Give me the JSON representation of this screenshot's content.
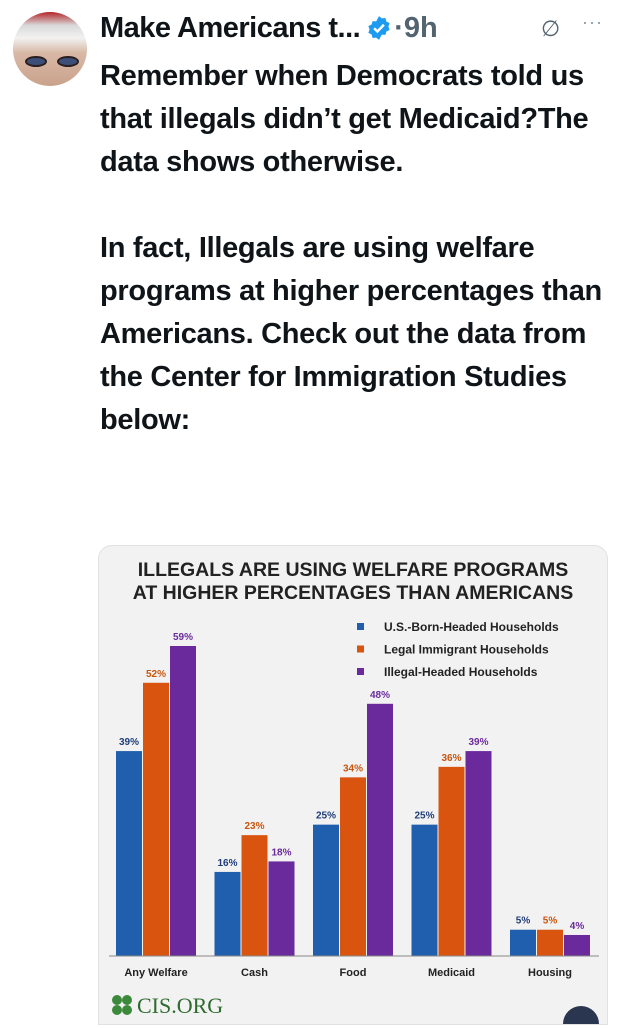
{
  "tweet": {
    "author": "Make Americans t...",
    "time": "·9h",
    "paragraphs": [
      "Remember when Democrats told us that illegals didn’t get Medicaid?The data shows otherwise.",
      "In fact, Illegals are using welfare programs at higher percentages than Americans. Check out the data from the Center for Immigration Studies below:"
    ]
  },
  "image": {
    "source_logo": "CIS.ORG"
  },
  "chart_data": {
    "type": "bar",
    "title": "ILLEGALS ARE USING WELFARE PROGRAMS AT HIGHER PERCENTAGES THAN AMERICANS",
    "title_lines": [
      "ILLEGALS ARE USING WELFARE PROGRAMS",
      "AT HIGHER PERCENTAGES THAN AMERICANS"
    ],
    "categories": [
      "Any Welfare",
      "Cash",
      "Food",
      "Medicaid",
      "Housing"
    ],
    "series": [
      {
        "name": "U.S.-Born-Headed Households",
        "color": "#1f5fad",
        "values": [
          39,
          16,
          25,
          25,
          5
        ]
      },
      {
        "name": "Legal Immigrant Households",
        "color": "#d9540f",
        "values": [
          52,
          23,
          34,
          36,
          5
        ]
      },
      {
        "name": "Illegal-Headed Households",
        "color": "#6a2a9c",
        "values": [
          59,
          18,
          48,
          39,
          4
        ]
      }
    ],
    "label_colors": [
      "#1f3d7a",
      "#c8560f",
      "#6a2a9c"
    ],
    "ylim": [
      0,
      60
    ],
    "legend": "top-right",
    "grid": false
  }
}
